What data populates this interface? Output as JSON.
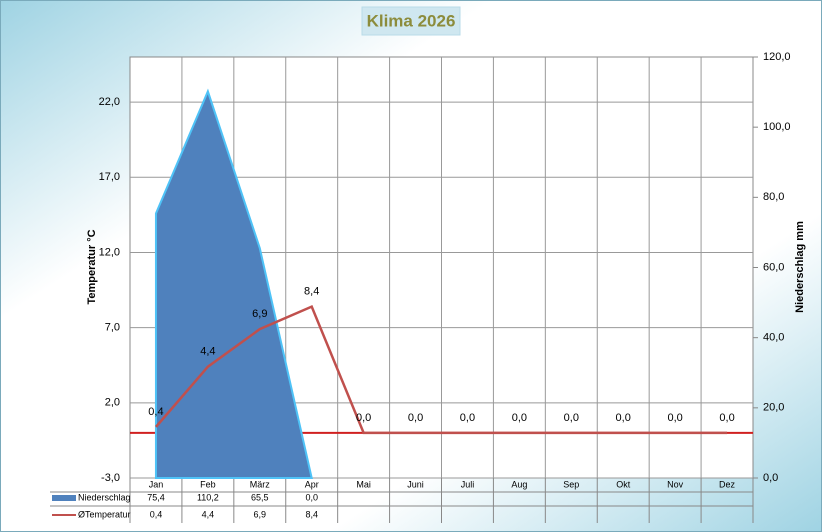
{
  "chart_data": {
    "type": "area-line",
    "title": "Klima 2026",
    "categories": [
      "Jan",
      "Feb",
      "März",
      "Apr",
      "Mai",
      "Juni",
      "Juli",
      "Aug",
      "Sep",
      "Okt",
      "Nov",
      "Dez"
    ],
    "series": [
      {
        "name": "Niederschlag",
        "type": "area",
        "axis": "y2",
        "color": "#4f81bd",
        "edge": "#4fc3f7",
        "values": [
          75.4,
          110.2,
          65.5,
          0.0,
          null,
          null,
          null,
          null,
          null,
          null,
          null,
          null
        ]
      },
      {
        "name": "ØTemperatur",
        "type": "line",
        "axis": "y",
        "color": "#c0504d",
        "values": [
          0.4,
          4.4,
          6.9,
          8.4,
          0.0,
          0.0,
          0.0,
          0.0,
          0.0,
          0.0,
          0.0,
          0.0
        ],
        "value_labels": [
          "0,4",
          "4,4",
          "6,9",
          "8,4",
          "0,0",
          "0,0",
          "0,0",
          "0,0",
          "0,0",
          "0,0",
          "0,0",
          "0,0"
        ]
      }
    ],
    "ylabel": "Temperatur °C",
    "y2label": "Niederschlag mm",
    "ylim": [
      -3,
      25
    ],
    "yticks": [
      {
        "value": -3,
        "label": "-3,0"
      },
      {
        "value": 2,
        "label": "2,0"
      },
      {
        "value": 7,
        "label": "7,0"
      },
      {
        "value": 12,
        "label": "12,0"
      },
      {
        "value": 17,
        "label": "17,0"
      },
      {
        "value": 22,
        "label": "22,0"
      }
    ],
    "y2lim": [
      0,
      120
    ],
    "y2ticks": [
      {
        "value": 0,
        "label": "0,0"
      },
      {
        "value": 20,
        "label": "20,0"
      },
      {
        "value": 40,
        "label": "40,0"
      },
      {
        "value": 60,
        "label": "60,0"
      },
      {
        "value": 80,
        "label": "80,0"
      },
      {
        "value": 100,
        "label": "100,0"
      },
      {
        "value": 120,
        "label": "120,0"
      }
    ],
    "grid": true,
    "data_table": {
      "rows": [
        [
          "75,4",
          "110,2",
          "65,5",
          "0,0"
        ],
        [
          "0,4",
          "4,4",
          "6,9",
          "8,4"
        ]
      ]
    }
  }
}
